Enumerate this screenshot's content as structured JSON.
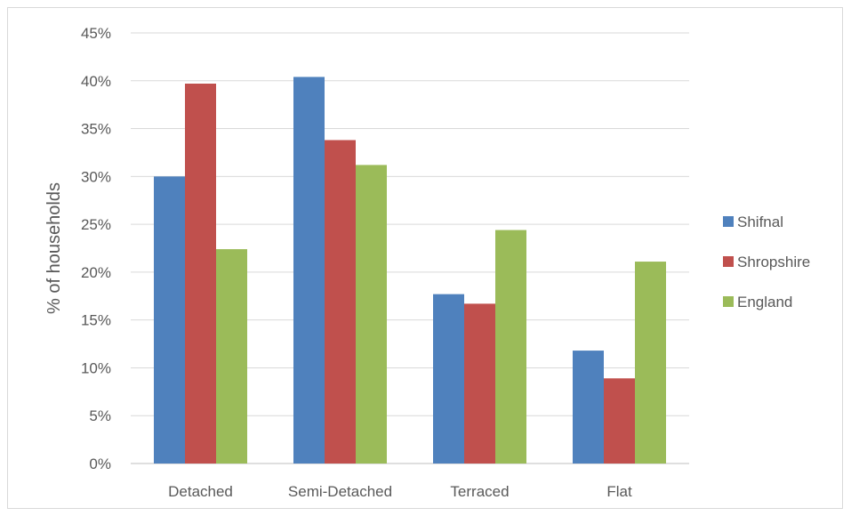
{
  "chart_data": {
    "type": "bar",
    "title": "",
    "xlabel": "",
    "ylabel": "% of households",
    "categories": [
      "Detached",
      "Semi-Detached",
      "Terraced",
      "Flat"
    ],
    "series": [
      {
        "name": "Shifnal",
        "color": "#4f81bd",
        "values": [
          30.0,
          40.4,
          17.7,
          11.8
        ]
      },
      {
        "name": "Shropshire",
        "color": "#c0504d",
        "values": [
          39.7,
          33.8,
          16.7,
          8.9
        ]
      },
      {
        "name": "England",
        "color": "#9bbb59",
        "values": [
          22.4,
          31.2,
          24.4,
          21.1
        ]
      }
    ],
    "ylim": [
      0,
      45
    ],
    "yticks": [
      0,
      5,
      10,
      15,
      20,
      25,
      30,
      35,
      40,
      45
    ],
    "ytick_format": "percent",
    "grid": true,
    "legend_position": "right"
  }
}
